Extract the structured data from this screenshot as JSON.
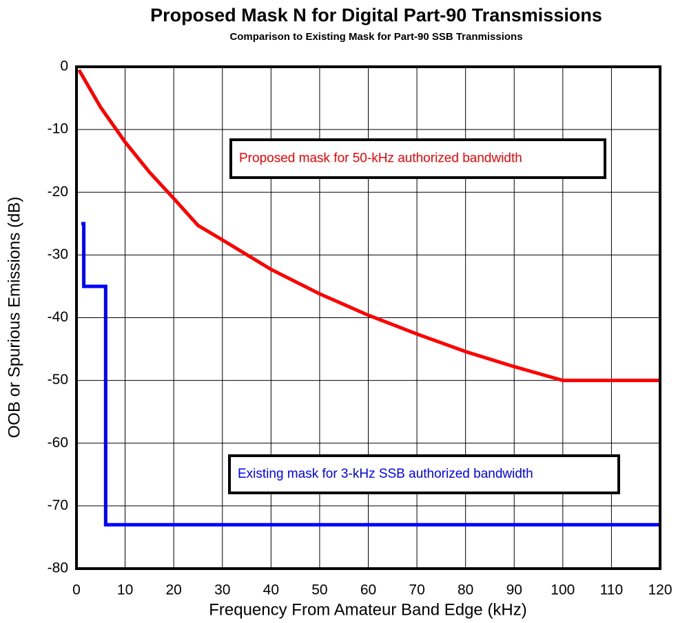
{
  "chart_data": {
    "type": "line",
    "title": "Proposed Mask N for Digital Part-90 Transmissions",
    "subtitle": "Comparison to Existing Mask for Part-90 SSB Tranmissions",
    "x_label": "Frequency From Amateur Band Edge (kHz)",
    "y_label": "OOB or Spurious Emissions (dB)",
    "xlim": [
      0,
      120
    ],
    "xticks": [
      0,
      10,
      20,
      30,
      40,
      50,
      60,
      70,
      80,
      90,
      100,
      110,
      120
    ],
    "ylim": [
      -80,
      0
    ],
    "yticks": [
      -80,
      -70,
      -60,
      -50,
      -40,
      -30,
      -20,
      -10,
      0
    ],
    "grid": true,
    "series": [
      {
        "name": "Proposed mask for 50-kHz authorized bandwidth",
        "color": "#ff0000",
        "x": [
          0.5,
          5,
          10,
          15,
          20,
          25,
          30,
          40,
          50,
          60,
          70,
          80,
          90,
          100,
          120
        ],
        "values": [
          -0.5,
          -6.5,
          -12,
          -16.8,
          -21,
          -25.3,
          -27.6,
          -32.3,
          -36.2,
          -39.6,
          -42.6,
          -45.4,
          -47.8,
          -50,
          -50
        ]
      },
      {
        "name": "Existing mask for 3-kHz SSB authorized bandwidth",
        "color": "#0000ff",
        "x": [
          1,
          1.5,
          1.5,
          6,
          6,
          120
        ],
        "values": [
          -25,
          -25,
          -35,
          -35,
          -73,
          -73
        ]
      }
    ]
  }
}
